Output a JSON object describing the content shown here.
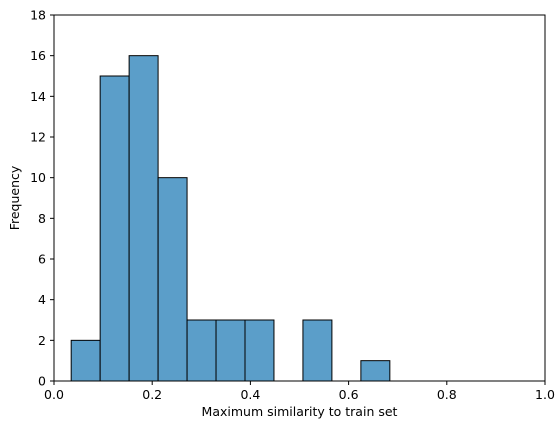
{
  "chart_data": {
    "type": "bar",
    "subtype": "histogram",
    "title": "",
    "xlabel": "Maximum similarity to train set",
    "ylabel": "Frequency",
    "xlim": [
      0.0,
      1.0
    ],
    "ylim": [
      0,
      18
    ],
    "x_ticks": [
      "0.0",
      "0.2",
      "0.4",
      "0.6",
      "0.8",
      "1.0"
    ],
    "x_tick_values": [
      0.0,
      0.2,
      0.4,
      0.6,
      0.8,
      1.0
    ],
    "y_ticks": [
      "0",
      "2",
      "4",
      "6",
      "8",
      "10",
      "12",
      "14",
      "16",
      "18"
    ],
    "y_tick_values": [
      0,
      2,
      4,
      6,
      8,
      10,
      12,
      14,
      16,
      18
    ],
    "grid": false,
    "legend": "none",
    "bar_color": "#5b9ec9",
    "edge_color": "#000000",
    "bins": [
      {
        "start": 0.035,
        "end": 0.094,
        "count": 2
      },
      {
        "start": 0.094,
        "end": 0.153,
        "count": 15
      },
      {
        "start": 0.153,
        "end": 0.212,
        "count": 16
      },
      {
        "start": 0.212,
        "end": 0.271,
        "count": 10
      },
      {
        "start": 0.271,
        "end": 0.33,
        "count": 3
      },
      {
        "start": 0.33,
        "end": 0.389,
        "count": 3
      },
      {
        "start": 0.389,
        "end": 0.448,
        "count": 3
      },
      {
        "start": 0.448,
        "end": 0.507,
        "count": 0
      },
      {
        "start": 0.507,
        "end": 0.566,
        "count": 3
      },
      {
        "start": 0.566,
        "end": 0.625,
        "count": 0
      },
      {
        "start": 0.625,
        "end": 0.684,
        "count": 1
      }
    ]
  }
}
